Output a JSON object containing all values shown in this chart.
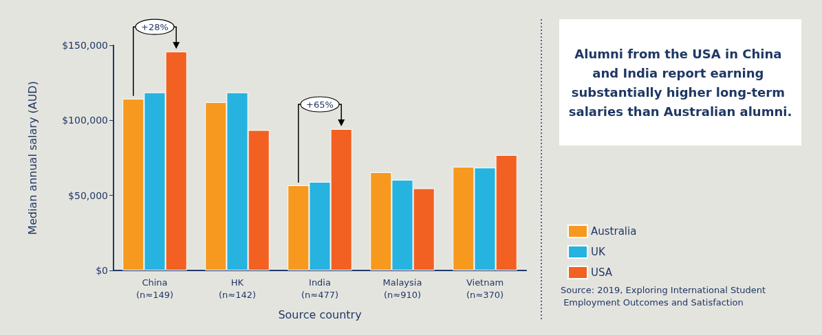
{
  "chart_data": {
    "type": "bar",
    "xlabel": "Source country",
    "ylabel": "Median annual salary (AUD)",
    "categories": [
      "China\n(n≈149)",
      "HK\n(n≈142)",
      "India\n(n≈477)",
      "Malaysia\n(n≈910)",
      "Vietnam\n(n≈370)"
    ],
    "series": [
      {
        "name": "Australia",
        "color": "#f7991f",
        "values": [
          114400,
          112100,
          56700,
          65400,
          69100
        ]
      },
      {
        "name": "UK",
        "color": "#26b3e0",
        "values": [
          118600,
          118600,
          59000,
          60400,
          68500
        ]
      },
      {
        "name": "USA",
        "color": "#f26122",
        "values": [
          145800,
          93500,
          94200,
          54700,
          76900
        ]
      }
    ],
    "ylim": [
      0,
      150000
    ],
    "yticks": [
      {
        "value": 0,
        "label": "$0"
      },
      {
        "value": 50000,
        "label": "$50,000"
      },
      {
        "value": 100000,
        "label": "$100,000"
      },
      {
        "value": 150000,
        "label": "$150,000"
      }
    ],
    "grid": false,
    "legend": "right",
    "annotations": [
      "+28%",
      "+65%",
      "Alumni from the USA in China and India report earning substantially higher long-term salaries than Australian alumni.",
      "Source: 2019, Exploring International Student Employment Outcomes and Satisfaction"
    ]
  }
}
